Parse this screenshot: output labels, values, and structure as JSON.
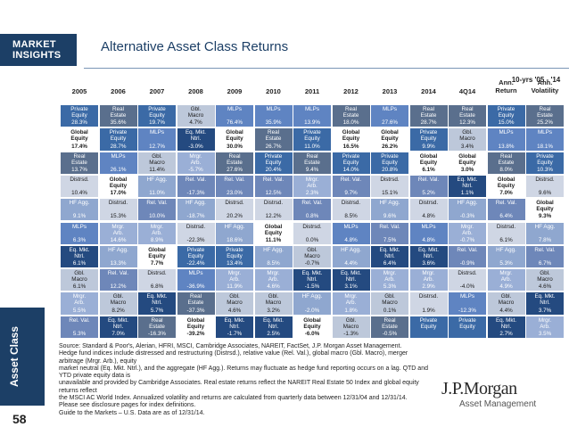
{
  "header": {
    "badge_line1": "MARKET",
    "badge_line2": "INSIGHTS",
    "title": "Alternative Asset Class Returns",
    "period_note": "10-yrs '05 - '14"
  },
  "side_label": "Asset Class",
  "page_number": "58",
  "columns": [
    "2005",
    "2006",
    "2007",
    "2008",
    "2009",
    "2010",
    "2011",
    "2012",
    "2013",
    "2014",
    "4Q14",
    "Ann.\nReturn",
    "Ann.\nVolatility"
  ],
  "colors": {
    "private_equity": "#3b6aa6",
    "real_estate": "#5a6f8d",
    "global_equity": "#ffffff",
    "mlps": "#5f84c2",
    "gbl_macro": "#bdc8da",
    "eq_mkt_ntrl": "#244a80",
    "hf_agg": "#8fa7cf",
    "distressed": "#cfd6e4",
    "rel_val": "#6e87b9",
    "mrgr_arb": "#9aafd6"
  },
  "grid": [
    [
      {
        "name": "Private\nEquity",
        "value": "28.3%",
        "cls": "private_equity"
      },
      {
        "name": "Real\nEstate",
        "value": "35.6%",
        "cls": "real_estate"
      },
      {
        "name": "Private\nEquity",
        "value": "19.7%",
        "cls": "private_equity"
      },
      {
        "name": "Gbl.\nMacro",
        "value": "4.7%",
        "cls": "gbl_macro"
      },
      {
        "name": "MLPs",
        "value": "76.4%",
        "cls": "mlps"
      },
      {
        "name": "MLPs",
        "value": "35.9%",
        "cls": "mlps"
      },
      {
        "name": "MLPs",
        "value": "13.9%",
        "cls": "mlps"
      },
      {
        "name": "Real\nEstate",
        "value": "18.0%",
        "cls": "real_estate"
      },
      {
        "name": "MLPs",
        "value": "27.6%",
        "cls": "mlps"
      },
      {
        "name": "Real\nEstate",
        "value": "28.7%",
        "cls": "real_estate"
      },
      {
        "name": "Real\nEstate",
        "value": "12.3%",
        "cls": "real_estate"
      },
      {
        "name": "Private\nEquity",
        "value": "15.0%",
        "cls": "private_equity"
      },
      {
        "name": "Real\nEstate",
        "value": "25.2%",
        "cls": "real_estate"
      }
    ],
    [
      {
        "name": "Global\nEquity",
        "value": "17.4%",
        "cls": "global_equity"
      },
      {
        "name": "Private\nEquity",
        "value": "28.7%",
        "cls": "private_equity"
      },
      {
        "name": "MLPs",
        "value": "12.7%",
        "cls": "mlps"
      },
      {
        "name": "Eq. Mkt.\nNtrl.",
        "value": "-3.0%",
        "cls": "eq_mkt_ntrl"
      },
      {
        "name": "Global\nEquity",
        "value": "30.0%",
        "cls": "global_equity"
      },
      {
        "name": "Real\nEstate",
        "value": "26.7%",
        "cls": "real_estate"
      },
      {
        "name": "Private\nEquity",
        "value": "11.0%",
        "cls": "private_equity"
      },
      {
        "name": "Global\nEquity",
        "value": "16.5%",
        "cls": "global_equity"
      },
      {
        "name": "Global\nEquity",
        "value": "26.2%",
        "cls": "global_equity"
      },
      {
        "name": "Private\nEquity",
        "value": "9.9%",
        "cls": "private_equity"
      },
      {
        "name": "Gbl.\nMacro",
        "value": "3.4%",
        "cls": "gbl_macro"
      },
      {
        "name": "MLPs",
        "value": "13.8%",
        "cls": "mlps"
      },
      {
        "name": "MLPs",
        "value": "18.1%",
        "cls": "mlps"
      }
    ],
    [
      {
        "name": "Real\nEstate",
        "value": "13.7%",
        "cls": "real_estate"
      },
      {
        "name": "MLPs",
        "value": "26.1%",
        "cls": "mlps"
      },
      {
        "name": "Gbl.\nMacro",
        "value": "11.4%",
        "cls": "gbl_macro"
      },
      {
        "name": "Mrgr.\nArb.",
        "value": "-5.7%",
        "cls": "mrgr_arb"
      },
      {
        "name": "Real\nEstate",
        "value": "27.6%",
        "cls": "real_estate"
      },
      {
        "name": "Private\nEquity",
        "value": "20.4%",
        "cls": "private_equity"
      },
      {
        "name": "Real\nEstate",
        "value": "9.4%",
        "cls": "real_estate"
      },
      {
        "name": "Private\nEquity",
        "value": "14.0%",
        "cls": "private_equity"
      },
      {
        "name": "Private\nEquity",
        "value": "20.8%",
        "cls": "private_equity"
      },
      {
        "name": "Global\nEquity",
        "value": "6.1%",
        "cls": "global_equity"
      },
      {
        "name": "Global\nEquity",
        "value": "3.0%",
        "cls": "global_equity"
      },
      {
        "name": "Real\nEstate",
        "value": "8.0%",
        "cls": "real_estate"
      },
      {
        "name": "Private\nEquity",
        "value": "10.3%",
        "cls": "private_equity"
      }
    ],
    [
      {
        "name": "Distrsd.",
        "value": "10.4%",
        "cls": "distressed"
      },
      {
        "name": "Global\nEquity",
        "value": "17.0%",
        "cls": "global_equity"
      },
      {
        "name": "HF Agg.",
        "value": "11.0%",
        "cls": "hf_agg"
      },
      {
        "name": "Rel. Val.",
        "value": "-17.3%",
        "cls": "rel_val"
      },
      {
        "name": "Rel. Val.",
        "value": "23.0%",
        "cls": "rel_val"
      },
      {
        "name": "Rel. Val.",
        "value": "12.5%",
        "cls": "rel_val"
      },
      {
        "name": "Mrgr.\nArb.",
        "value": "2.3%",
        "cls": "mrgr_arb"
      },
      {
        "name": "Rel. Val.",
        "value": "9.7%",
        "cls": "rel_val"
      },
      {
        "name": "Distrsd.",
        "value": "15.1%",
        "cls": "distressed"
      },
      {
        "name": "Rel. Val.",
        "value": "5.2%",
        "cls": "rel_val"
      },
      {
        "name": "Eq. Mkt.\nNtrl.",
        "value": "1.1%",
        "cls": "eq_mkt_ntrl"
      },
      {
        "name": "Global\nEquity",
        "value": "7.0%",
        "cls": "global_equity"
      },
      {
        "name": "Distrsd.",
        "value": "9.6%",
        "cls": "distressed"
      }
    ],
    [
      {
        "name": "HF Agg.",
        "value": "9.1%",
        "cls": "hf_agg"
      },
      {
        "name": "Distrsd.",
        "value": "15.3%",
        "cls": "distressed"
      },
      {
        "name": "Rel. Val.",
        "value": "10.0%",
        "cls": "rel_val"
      },
      {
        "name": "HF Agg.",
        "value": "-18.7%",
        "cls": "hf_agg"
      },
      {
        "name": "Distrsd.",
        "value": "20.2%",
        "cls": "distressed"
      },
      {
        "name": "Distrsd.",
        "value": "12.2%",
        "cls": "distressed"
      },
      {
        "name": "Rel. Val.",
        "value": "0.8%",
        "cls": "rel_val"
      },
      {
        "name": "Distrsd.",
        "value": "8.5%",
        "cls": "distressed"
      },
      {
        "name": "HF Agg.",
        "value": "9.6%",
        "cls": "hf_agg"
      },
      {
        "name": "Distrsd.",
        "value": "4.8%",
        "cls": "distressed"
      },
      {
        "name": "HF Agg.",
        "value": "-0.3%",
        "cls": "hf_agg"
      },
      {
        "name": "Rel. Val.",
        "value": "6.4%",
        "cls": "rel_val"
      },
      {
        "name": "Global\nEquity",
        "value": "9.3%",
        "cls": "global_equity"
      }
    ],
    [
      {
        "name": "MLPs",
        "value": "6.3%",
        "cls": "mlps"
      },
      {
        "name": "Mrgr.\nArb.",
        "value": "14.6%",
        "cls": "mrgr_arb"
      },
      {
        "name": "Mrgr.\nArb.",
        "value": "8.9%",
        "cls": "mrgr_arb"
      },
      {
        "name": "Distrsd.",
        "value": "-22.3%",
        "cls": "distressed"
      },
      {
        "name": "HF Agg.",
        "value": "18.6%",
        "cls": "hf_agg"
      },
      {
        "name": "Global\nEquity",
        "value": "11.1%",
        "cls": "global_equity"
      },
      {
        "name": "Distrsd.",
        "value": "0.0%",
        "cls": "distressed"
      },
      {
        "name": "MLPs",
        "value": "4.8%",
        "cls": "mlps"
      },
      {
        "name": "Rel. Val.",
        "value": "7.5%",
        "cls": "rel_val"
      },
      {
        "name": "MLPs",
        "value": "4.8%",
        "cls": "mlps"
      },
      {
        "name": "Mrgr.\nArb.",
        "value": "-0.7%",
        "cls": "mrgr_arb"
      },
      {
        "name": "Distrsd.",
        "value": "6.1%",
        "cls": "distressed"
      },
      {
        "name": "HF Agg.",
        "value": "7.8%",
        "cls": "hf_agg"
      }
    ],
    [
      {
        "name": "Eq. Mkt.\nNtrl.",
        "value": "6.1%",
        "cls": "eq_mkt_ntrl"
      },
      {
        "name": "HF Agg.",
        "value": "13.3%",
        "cls": "hf_agg"
      },
      {
        "name": "Global\nEquity",
        "value": "7.7%",
        "cls": "global_equity"
      },
      {
        "name": "Private\nEquity",
        "value": "-22.4%",
        "cls": "private_equity"
      },
      {
        "name": "Private\nEquity",
        "value": "13.4%",
        "cls": "private_equity"
      },
      {
        "name": "HF Agg.",
        "value": "8.5%",
        "cls": "hf_agg"
      },
      {
        "name": "Gbl.\nMacro",
        "value": "-0.7%",
        "cls": "gbl_macro"
      },
      {
        "name": "HF Agg.",
        "value": "4.4%",
        "cls": "hf_agg"
      },
      {
        "name": "Eq. Mkt.\nNtrl.",
        "value": "6.4%",
        "cls": "eq_mkt_ntrl"
      },
      {
        "name": "Eq. Mkt.\nNtrl.",
        "value": "3.6%",
        "cls": "eq_mkt_ntrl"
      },
      {
        "name": "Rel. Val.",
        "value": "-0.9%",
        "cls": "rel_val"
      },
      {
        "name": "HF Agg.",
        "value": "5.3%",
        "cls": "hf_agg"
      },
      {
        "name": "Rel. Val.",
        "value": "6.7%",
        "cls": "rel_val"
      }
    ],
    [
      {
        "name": "Gbl.\nMacro",
        "value": "6.1%",
        "cls": "gbl_macro"
      },
      {
        "name": "Rel. Val.",
        "value": "12.2%",
        "cls": "rel_val"
      },
      {
        "name": "Distrsd.",
        "value": "6.8%",
        "cls": "distressed"
      },
      {
        "name": "MLPs",
        "value": "-36.9%",
        "cls": "mlps"
      },
      {
        "name": "Mrgr.\nArb.",
        "value": "11.9%",
        "cls": "mrgr_arb"
      },
      {
        "name": "Mrgr.\nArb.",
        "value": "4.6%",
        "cls": "mrgr_arb"
      },
      {
        "name": "Eq. Mkt.\nNtrl.",
        "value": "-1.5%",
        "cls": "eq_mkt_ntrl"
      },
      {
        "name": "Eq. Mkt.\nNtrl.",
        "value": "3.1%",
        "cls": "eq_mkt_ntrl"
      },
      {
        "name": "Mrgr.\nArb.",
        "value": "5.3%",
        "cls": "mrgr_arb"
      },
      {
        "name": "Mrgr.\nArb.",
        "value": "2.9%",
        "cls": "mrgr_arb"
      },
      {
        "name": "Distrsd.",
        "value": "-4.0%",
        "cls": "distressed"
      },
      {
        "name": "Mrgr.\nArb.",
        "value": "4.9%",
        "cls": "mrgr_arb"
      },
      {
        "name": "Gbl.\nMacro",
        "value": "4.6%",
        "cls": "gbl_macro"
      }
    ],
    [
      {
        "name": "Mrgr.\nArb.",
        "value": "5.5%",
        "cls": "mrgr_arb"
      },
      {
        "name": "Gbl.\nMacro",
        "value": "8.2%",
        "cls": "gbl_macro"
      },
      {
        "name": "Eq. Mkt.\nNtrl.",
        "value": "5.7%",
        "cls": "eq_mkt_ntrl"
      },
      {
        "name": "Real\nEstate",
        "value": "-37.3%",
        "cls": "real_estate"
      },
      {
        "name": "Gbl.\nMacro",
        "value": "4.6%",
        "cls": "gbl_macro"
      },
      {
        "name": "Gbl.\nMacro",
        "value": "3.2%",
        "cls": "gbl_macro"
      },
      {
        "name": "HF Agg.",
        "value": "-2.0%",
        "cls": "hf_agg"
      },
      {
        "name": "Mrgr.\nArb.",
        "value": "1.8%",
        "cls": "mrgr_arb"
      },
      {
        "name": "Gbl.\nMacro",
        "value": "0.1%",
        "cls": "gbl_macro"
      },
      {
        "name": "Distrsd.",
        "value": "1.9%",
        "cls": "distressed"
      },
      {
        "name": "MLPs",
        "value": "-12.3%",
        "cls": "mlps"
      },
      {
        "name": "Gbl.\nMacro",
        "value": "4.4%",
        "cls": "gbl_macro"
      },
      {
        "name": "Eq. Mkt.\nNtrl.",
        "value": "3.7%",
        "cls": "eq_mkt_ntrl"
      }
    ],
    [
      {
        "name": "Rel. Val.",
        "value": "5.3%",
        "cls": "rel_val"
      },
      {
        "name": "Eq. Mkt.\nNtrl.",
        "value": "7.0%",
        "cls": "eq_mkt_ntrl"
      },
      {
        "name": "Real\nEstate",
        "value": "-16.3%",
        "cls": "real_estate"
      },
      {
        "name": "Global\nEquity",
        "value": "-39.2%",
        "cls": "global_equity"
      },
      {
        "name": "Eq. Mkt.\nNtrl.",
        "value": "-1.7%",
        "cls": "eq_mkt_ntrl"
      },
      {
        "name": "Eq. Mkt.\nNtrl.",
        "value": "2.5%",
        "cls": "eq_mkt_ntrl"
      },
      {
        "name": "Global\nEquity",
        "value": "-6.0%",
        "cls": "global_equity"
      },
      {
        "name": "Gbl.\nMacro",
        "value": "-1.3%",
        "cls": "gbl_macro"
      },
      {
        "name": "Real\nEstate",
        "value": "-0.5%",
        "cls": "real_estate"
      },
      {
        "name": "Private\nEquity",
        "value": "",
        "cls": "private_equity"
      },
      {
        "name": "Private\nEquity",
        "value": "",
        "cls": "private_equity"
      },
      {
        "name": "Eq. Mkt.\nNtrl.",
        "value": "2.7%",
        "cls": "eq_mkt_ntrl"
      },
      {
        "name": "Mrgr.\nArb.",
        "value": "3.5%",
        "cls": "mrgr_arb"
      }
    ]
  ],
  "notes": [
    "Source: Standard & Poor's, Alerian, HFRI, MSCI, Cambridge Associates, NAREIT, FactSet, J.P. Morgan Asset Management.",
    "Hedge fund indices include distressed and restructuring (Distrsd.), relative value (Rel. Val.), global macro (Gbl. Macro), merger arbitrage (Mrgr. Arb.), equity",
    "market neutral (Eq. Mkt. Ntrl.), and the aggregate (HF Agg.). Returns may fluctuate as hedge fund reporting occurs on a lag. QTD and YTD private equity data is",
    "unavailable and provided by Cambridge Associates. Real estate returns reflect the NAREIT Real Estate 50 Index and global equity returns reflect",
    "the MSCI AC World Index. Annualized volatility and returns are calculated from quarterly data between 12/31/04 and 12/31/14.",
    "Please see disclosure pages for index definitions.",
    "Guide to the Markets – U.S. Data are as of 12/31/14."
  ],
  "brand": {
    "main": "J.P.Morgan",
    "sub": "Asset Management"
  }
}
